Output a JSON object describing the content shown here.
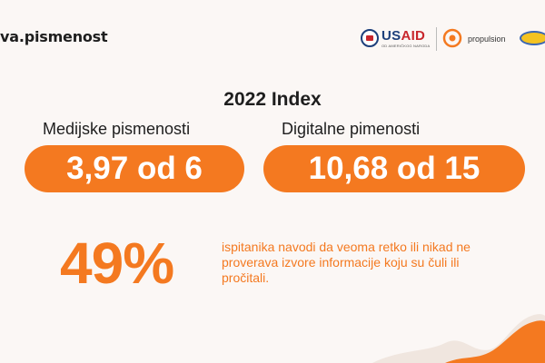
{
  "header": {
    "brand_text": "va.pismenost",
    "logos": {
      "usaid_text_a": "US",
      "usaid_text_b": "AID",
      "usaid_tagline": "OD AMERIČKOG NARODA",
      "propulsion_text": "propulsion"
    }
  },
  "main": {
    "title": "2022 Index",
    "metrics": [
      {
        "label": "Medijske pismenosti",
        "value": "3,97 od 6"
      },
      {
        "label": "Digitalne pimenosti",
        "value": "10,68 od 15"
      }
    ],
    "stat": {
      "percent": "49%",
      "text": "ispitanika navodi da veoma retko ili nikad ne proverava izvore informacije koju su čuli ili pročitali."
    }
  },
  "colors": {
    "accent": "#f47920",
    "background": "#fbf7f5",
    "text": "#1e1e1e",
    "usaid_blue": "#1d3f7b",
    "usaid_red": "#c8262c"
  }
}
